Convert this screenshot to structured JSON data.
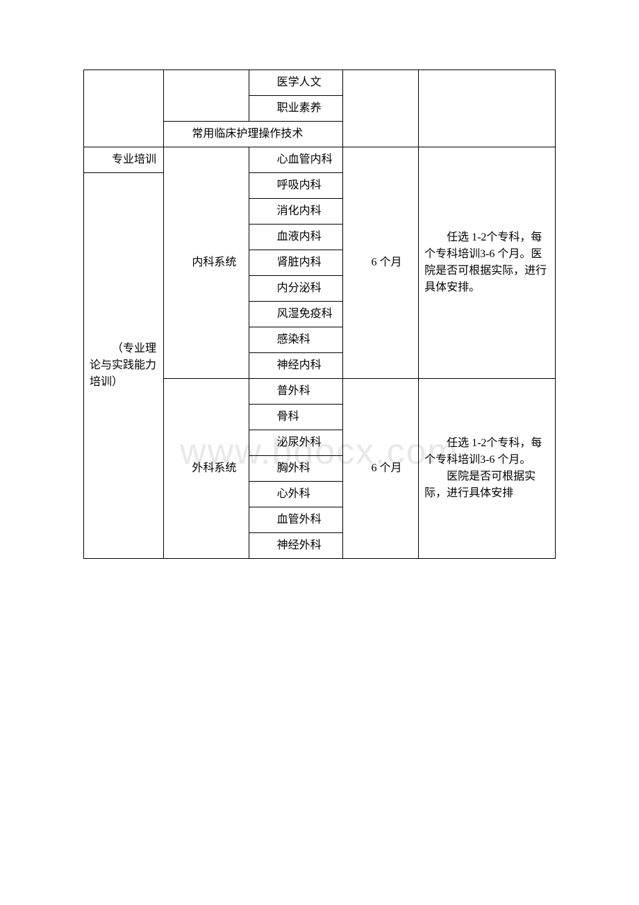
{
  "watermark": "www.bdocx.com",
  "table": {
    "r1c3": "医学人文",
    "r2c3": "职业素养",
    "r3c2": "常用临床护理操作技术",
    "r4c1": "专业培训",
    "r4c2": "内科系统",
    "r4c3": "心血管内科",
    "r4c4": "6 个月",
    "r4c5": "任选 1-2个专科，每个专科培训3-6 个月。医院是否可根据实际，进行具体安排。",
    "r5c1": "（专业理论与实践能力培训）",
    "r5c3": "呼吸内科",
    "r6c3": "消化内科",
    "r7c3": "血液内科",
    "r8c3": "肾脏内科",
    "r9c3": "内分泌科",
    "r10c3": "风湿免疫科",
    "r11c3": "感染科",
    "r12c3": "神经内科",
    "r13c2": "外科系统",
    "r13c3": "普外科",
    "r13c4": "6 个月",
    "r13c5a": "任选 1-2个专科，每个专科培训3-6 个月。",
    "r13c5b": "医院是否可根据实际，进行具体安排",
    "r14c3": "骨科",
    "r15c3": "泌尿外科",
    "r16c3": "胸外科",
    "r17c3": "心外科",
    "r18c3": "血管外科",
    "r19c3": "神经外科"
  }
}
